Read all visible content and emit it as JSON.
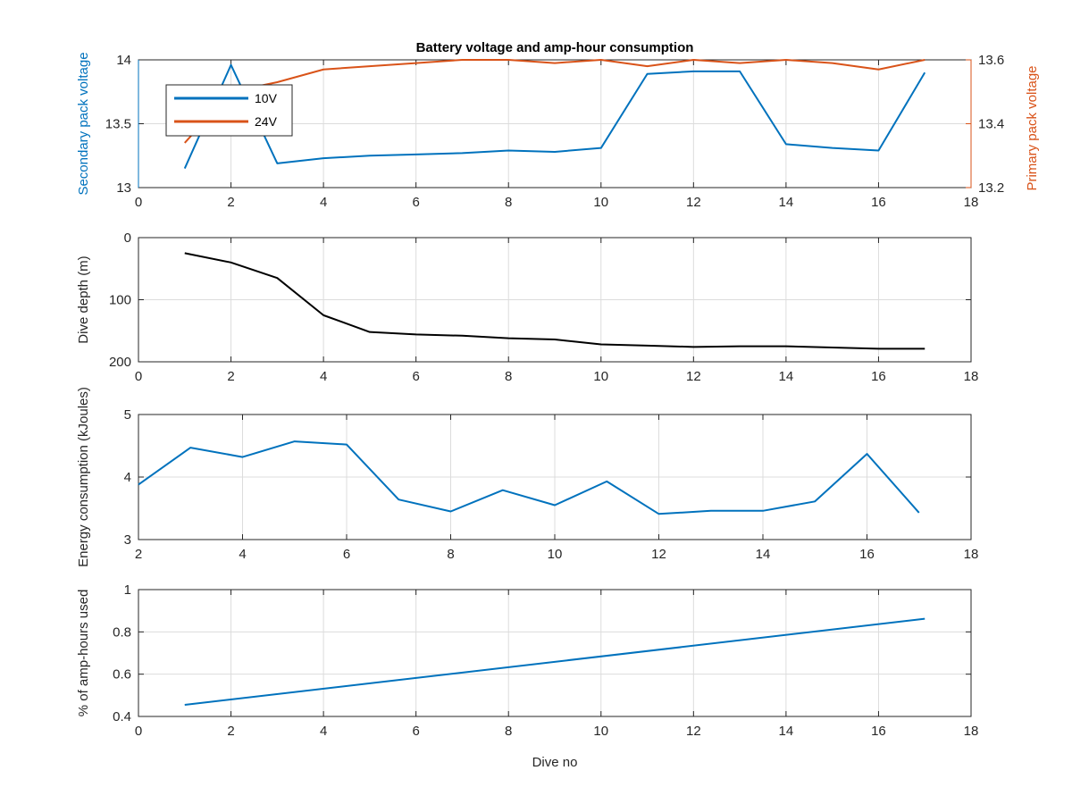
{
  "colors": {
    "blue": "#0072BD",
    "orange": "#D95319",
    "black": "#000000",
    "axis": "#262626"
  },
  "chart_data": [
    {
      "type": "line",
      "title": "Battery voltage and amp-hour consumption",
      "xlabel": "",
      "ylabel": "Secondary pack voltage",
      "ylabel_right": "Primary pack voltage",
      "xlim": [
        0,
        18
      ],
      "ylim": [
        13,
        14
      ],
      "ylim_right": [
        13.2,
        13.6
      ],
      "xticks": [
        "0",
        "2",
        "4",
        "6",
        "8",
        "10",
        "12",
        "14",
        "16",
        "18"
      ],
      "yticks": [
        "13",
        "13.5",
        "14"
      ],
      "yticks_right": [
        "13.2",
        "13.4",
        "13.6"
      ],
      "grid": true,
      "legend_position": "top-left",
      "series": [
        {
          "name": "10V",
          "axis": "left",
          "color": "#0072BD",
          "x": [
            1,
            2,
            3,
            4,
            5,
            6,
            7,
            8,
            9,
            10,
            11,
            12,
            13,
            14,
            15,
            16,
            17
          ],
          "y": [
            13.15,
            13.96,
            13.19,
            13.23,
            13.25,
            13.26,
            13.27,
            13.29,
            13.28,
            13.31,
            13.89,
            13.91,
            13.91,
            13.34,
            13.31,
            13.29,
            13.9
          ]
        },
        {
          "name": "24V",
          "axis": "right",
          "color": "#D95319",
          "x": [
            1,
            2,
            3,
            4,
            5,
            6,
            7,
            8,
            9,
            10,
            11,
            12,
            13,
            14,
            15,
            16,
            17
          ],
          "y": [
            13.34,
            13.5,
            13.53,
            13.57,
            13.58,
            13.59,
            13.6,
            13.6,
            13.59,
            13.6,
            13.58,
            13.6,
            13.59,
            13.6,
            13.59,
            13.57,
            13.6
          ]
        }
      ]
    },
    {
      "type": "line",
      "title": "",
      "xlabel": "",
      "ylabel": "Dive depth (m)",
      "xlim": [
        0,
        18
      ],
      "ylim": [
        0,
        200
      ],
      "y_reversed": true,
      "xticks": [
        "0",
        "2",
        "4",
        "6",
        "8",
        "10",
        "12",
        "14",
        "16",
        "18"
      ],
      "yticks": [
        "0",
        "100",
        "200"
      ],
      "grid": true,
      "series": [
        {
          "color": "#000000",
          "x": [
            1,
            2,
            3,
            4,
            5,
            6,
            7,
            8,
            9,
            10,
            11,
            12,
            13,
            14,
            15,
            16,
            17
          ],
          "y": [
            25,
            40,
            65,
            125,
            152,
            156,
            158,
            162,
            164,
            172,
            174,
            176,
            175,
            175,
            177,
            179,
            179
          ]
        }
      ]
    },
    {
      "type": "line",
      "title": "",
      "xlabel": "",
      "ylabel": "Energy consumption (kJoules)",
      "xlim": [
        2,
        18
      ],
      "ylim": [
        3,
        5
      ],
      "xticks": [
        "2",
        "4",
        "6",
        "8",
        "10",
        "12",
        "14",
        "16",
        "18"
      ],
      "yticks": [
        "3",
        "4",
        "5"
      ],
      "grid": true,
      "series": [
        {
          "color": "#0072BD",
          "x": [
            2,
            3,
            4,
            5,
            6,
            7,
            8,
            9,
            10,
            11,
            12,
            13,
            14,
            15,
            16,
            17
          ],
          "y": [
            3.88,
            4.47,
            4.32,
            4.57,
            4.52,
            3.64,
            3.45,
            3.79,
            3.55,
            3.93,
            3.41,
            3.46,
            3.46,
            3.61,
            4.37,
            3.43
          ]
        }
      ]
    },
    {
      "type": "line",
      "title": "",
      "xlabel": "Dive no",
      "ylabel": "% of amp-hours used",
      "xlim": [
        0,
        18
      ],
      "ylim": [
        0.4,
        1
      ],
      "xticks": [
        "0",
        "2",
        "4",
        "6",
        "8",
        "10",
        "12",
        "14",
        "16",
        "18"
      ],
      "yticks": [
        "0.4",
        "0.6",
        "0.8",
        "1"
      ],
      "grid": true,
      "series": [
        {
          "color": "#0072BD",
          "x": [
            1,
            17
          ],
          "y": [
            0.455,
            0.862
          ]
        }
      ]
    }
  ]
}
